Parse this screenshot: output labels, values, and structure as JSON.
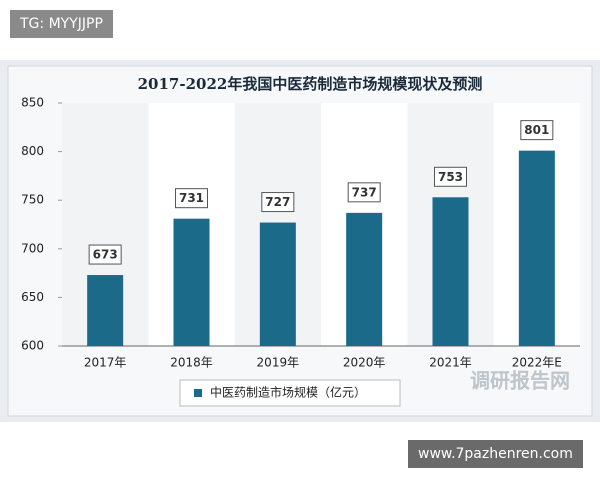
{
  "top_label": "TG: MYYJJPP",
  "footer_label": "www.7pazhenren.com",
  "chart_data": {
    "type": "bar",
    "title": "2017-2022年我国中医药制造市场规模现状及预测",
    "categories": [
      "2017年",
      "2018年",
      "2019年",
      "2020年",
      "2021年",
      "2022年E"
    ],
    "series": [
      {
        "name": "中医药制造市场规模（亿元）",
        "color": "#1c6a8a",
        "values": [
          673,
          731,
          727,
          737,
          753,
          801
        ]
      }
    ],
    "ylim": [
      600,
      850
    ],
    "yticks": [
      600,
      650,
      700,
      750,
      800,
      850
    ],
    "watermark": "调研报告网",
    "legend": "bottom"
  }
}
